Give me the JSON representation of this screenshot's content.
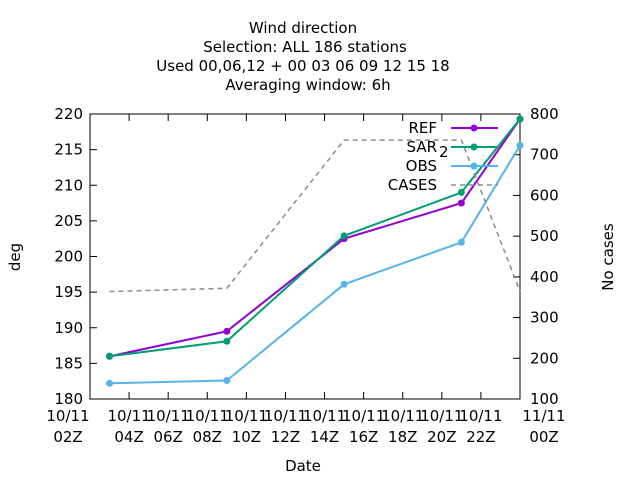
{
  "chart_data": {
    "type": "line",
    "title_lines": [
      "Wind direction",
      "Selection: ALL     186 stations",
      "Used  00,06,12  + 00 03 06 09 12 15 18",
      "Averaging window:  6h"
    ],
    "xlabel": "Date",
    "ylabel": "deg",
    "y2label": "No cases",
    "x_unit": "hours since 10/11 02Z",
    "xlim": [
      0,
      22
    ],
    "ylim": [
      180,
      220
    ],
    "y2lim": [
      100,
      800
    ],
    "x_ticks": [
      {
        "x": 0,
        "line1": "10/11",
        "line2": "02Z"
      },
      {
        "x": 2,
        "line1": "10/11",
        "line2": "04Z"
      },
      {
        "x": 4,
        "line1": "10/11",
        "line2": "06Z"
      },
      {
        "x": 6,
        "line1": "10/11",
        "line2": "08Z"
      },
      {
        "x": 8,
        "line1": "10/11",
        "line2": "10Z"
      },
      {
        "x": 10,
        "line1": "10/11",
        "line2": "12Z"
      },
      {
        "x": 12,
        "line1": "10/11",
        "line2": "14Z"
      },
      {
        "x": 14,
        "line1": "10/11",
        "line2": "16Z"
      },
      {
        "x": 16,
        "line1": "10/11",
        "line2": "18Z"
      },
      {
        "x": 18,
        "line1": "10/11",
        "line2": "20Z"
      },
      {
        "x": 20,
        "line1": "10/11",
        "line2": "22Z"
      },
      {
        "x": 22,
        "line1": "11/11",
        "line2": "00Z"
      }
    ],
    "y_ticks": [
      180,
      185,
      190,
      195,
      200,
      205,
      210,
      215,
      220
    ],
    "y2_ticks": [
      100,
      200,
      300,
      400,
      500,
      600,
      700,
      800
    ],
    "grid": false,
    "legend_position": "top-right",
    "series": [
      {
        "name": "REF",
        "axis": "y",
        "color": "#9400d3",
        "style": "solid",
        "marker": "circle",
        "x": [
          1,
          7,
          13,
          19,
          22
        ],
        "y": [
          186.0,
          189.5,
          202.5,
          207.5,
          219.3
        ]
      },
      {
        "name": "SAR",
        "name_sub": "2",
        "axis": "y",
        "color": "#009e73",
        "style": "solid",
        "marker": "circle",
        "x": [
          1,
          7,
          13,
          19,
          22
        ],
        "y": [
          186.0,
          188.1,
          202.9,
          209.0,
          219.3
        ]
      },
      {
        "name": "OBS",
        "axis": "y",
        "color": "#56b4e9",
        "style": "solid",
        "marker": "circle",
        "x": [
          1,
          7,
          13,
          19,
          22
        ],
        "y": [
          182.2,
          182.6,
          196.1,
          202.0,
          215.6
        ]
      },
      {
        "name": "CASES",
        "axis": "y2",
        "color": "#8c8c8c",
        "style": "dashed",
        "marker": "none",
        "x": [
          1,
          7,
          13,
          19,
          22
        ],
        "y": [
          364,
          372,
          736,
          736,
          364
        ]
      }
    ]
  }
}
